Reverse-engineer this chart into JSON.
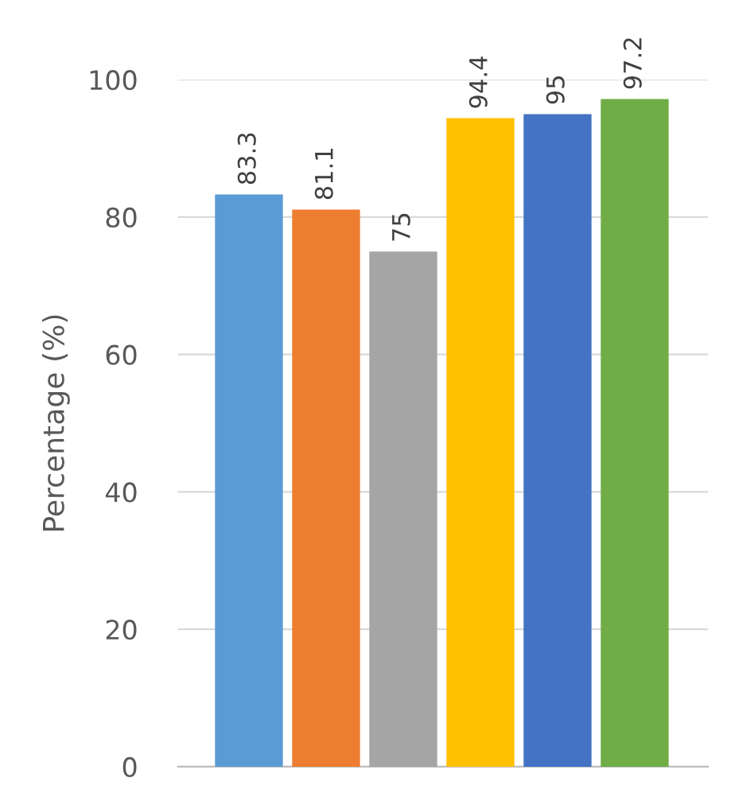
{
  "chart_data": {
    "type": "bar",
    "ylabel": "Percentage (%)",
    "categories": [
      null,
      null,
      null,
      null,
      null,
      null
    ],
    "values": [
      83.3,
      81.1,
      75,
      94.4,
      95,
      97.2
    ],
    "colors": [
      "#5b9bd5",
      "#ed7d31",
      "#a5a5a5",
      "#ffc000",
      "#4472c4",
      "#70ad47"
    ],
    "ylim": [
      0,
      100
    ],
    "yticks": [
      0,
      20,
      40,
      60,
      80,
      100
    ],
    "grid": "y",
    "data_labels": true,
    "legend": false
  }
}
